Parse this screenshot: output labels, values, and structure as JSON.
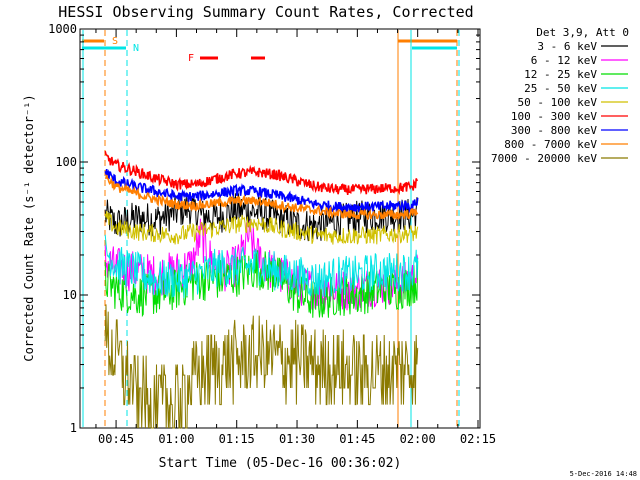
{
  "chart_data": {
    "type": "line",
    "title": "HESSI Observing Summary Count Rates, Corrected",
    "xlabel": "Start Time (05-Dec-16 00:36:02)",
    "ylabel": "Corrected Count Rate (s⁻¹ detector⁻¹)",
    "yscale": "log",
    "ylim": [
      1,
      1000
    ],
    "xlim_min": [
      36.03,
      135.5
    ],
    "y_ticks": [
      {
        "v": 1,
        "label": "1"
      },
      {
        "v": 10,
        "label": "10"
      },
      {
        "v": 100,
        "label": "100"
      },
      {
        "v": 1000,
        "label": "1000"
      }
    ],
    "x_ticks": [
      {
        "v": 45,
        "label": "00:45"
      },
      {
        "v": 60,
        "label": "01:00"
      },
      {
        "v": 75,
        "label": "01:15"
      },
      {
        "v": 90,
        "label": "01:30"
      },
      {
        "v": 105,
        "label": "01:45"
      },
      {
        "v": 120,
        "label": "02:00"
      },
      {
        "v": 135,
        "label": "02:15"
      }
    ],
    "legend_header": "Det 3,9, Att 0",
    "data_start": 42.3,
    "data_end": 120.0,
    "series": [
      {
        "name": "3 - 6 keV",
        "color": "#000000",
        "noise": 0.13,
        "pts": [
          [
            42.3,
            40
          ],
          [
            45,
            34
          ],
          [
            50,
            38
          ],
          [
            55,
            37
          ],
          [
            60,
            42
          ],
          [
            63,
            45
          ],
          [
            66,
            40
          ],
          [
            70,
            38
          ],
          [
            75,
            44
          ],
          [
            80,
            42
          ],
          [
            85,
            38
          ],
          [
            90,
            34
          ],
          [
            95,
            33
          ],
          [
            100,
            36
          ],
          [
            105,
            38
          ],
          [
            110,
            40
          ],
          [
            115,
            40
          ],
          [
            119,
            40
          ],
          [
            120,
            44
          ]
        ]
      },
      {
        "name": "6 - 12 keV",
        "color": "#ff00ff",
        "noise": 0.16,
        "pts": [
          [
            42.3,
            18
          ],
          [
            45,
            16
          ],
          [
            50,
            15
          ],
          [
            55,
            14
          ],
          [
            60,
            15
          ],
          [
            64,
            17
          ],
          [
            66,
            28
          ],
          [
            68,
            20
          ],
          [
            70,
            16
          ],
          [
            73,
            15
          ],
          [
            75,
            17
          ],
          [
            77,
            23
          ],
          [
            78,
            28
          ],
          [
            80,
            20
          ],
          [
            83,
            16
          ],
          [
            86,
            14
          ],
          [
            90,
            12
          ],
          [
            95,
            11
          ],
          [
            100,
            11
          ],
          [
            105,
            11
          ],
          [
            110,
            12
          ],
          [
            115,
            12
          ],
          [
            119,
            13
          ],
          [
            120,
            15
          ]
        ]
      },
      {
        "name": "12 - 25 keV",
        "color": "#00dd00",
        "noise": 0.16,
        "pts": [
          [
            42.3,
            13
          ],
          [
            45,
            11
          ],
          [
            50,
            10
          ],
          [
            55,
            10
          ],
          [
            60,
            11
          ],
          [
            65,
            13
          ],
          [
            70,
            13
          ],
          [
            75,
            14
          ],
          [
            80,
            16
          ],
          [
            85,
            14
          ],
          [
            90,
            10
          ],
          [
            95,
            9
          ],
          [
            100,
            10
          ],
          [
            105,
            10
          ],
          [
            110,
            11
          ],
          [
            115,
            11
          ],
          [
            119,
            12
          ],
          [
            120,
            13
          ]
        ]
      },
      {
        "name": "25 - 50 keV",
        "color": "#00e5e5",
        "noise": 0.15,
        "pts": [
          [
            42.3,
            22
          ],
          [
            45,
            17
          ],
          [
            50,
            15
          ],
          [
            55,
            13
          ],
          [
            60,
            13
          ],
          [
            65,
            14
          ],
          [
            70,
            16
          ],
          [
            75,
            16
          ],
          [
            80,
            17
          ],
          [
            85,
            15
          ],
          [
            90,
            14
          ],
          [
            95,
            13
          ],
          [
            100,
            14
          ],
          [
            105,
            14
          ],
          [
            110,
            15
          ],
          [
            115,
            15
          ],
          [
            119,
            15
          ],
          [
            120,
            17
          ]
        ]
      },
      {
        "name": "50 - 100 keV",
        "color": "#d0c000",
        "noise": 0.07,
        "pts": [
          [
            42.3,
            38
          ],
          [
            45,
            32
          ],
          [
            50,
            30
          ],
          [
            55,
            29
          ],
          [
            60,
            28
          ],
          [
            65,
            30
          ],
          [
            70,
            32
          ],
          [
            75,
            34
          ],
          [
            80,
            35
          ],
          [
            85,
            32
          ],
          [
            90,
            30
          ],
          [
            95,
            28
          ],
          [
            100,
            28
          ],
          [
            105,
            28
          ],
          [
            110,
            28
          ],
          [
            115,
            29
          ],
          [
            119,
            29
          ],
          [
            120,
            30
          ]
        ]
      },
      {
        "name": "100 - 300 keV",
        "color": "#ff0000",
        "noise": 0.04,
        "pts": [
          [
            42.3,
            110
          ],
          [
            45,
            95
          ],
          [
            50,
            85
          ],
          [
            55,
            75
          ],
          [
            60,
            68
          ],
          [
            65,
            68
          ],
          [
            70,
            75
          ],
          [
            75,
            82
          ],
          [
            80,
            84
          ],
          [
            85,
            80
          ],
          [
            90,
            72
          ],
          [
            95,
            65
          ],
          [
            100,
            62
          ],
          [
            105,
            62
          ],
          [
            110,
            63
          ],
          [
            115,
            64
          ],
          [
            119,
            65
          ],
          [
            120,
            75
          ]
        ]
      },
      {
        "name": "300 - 800 keV",
        "color": "#0000ff",
        "noise": 0.04,
        "pts": [
          [
            42.3,
            85
          ],
          [
            45,
            72
          ],
          [
            50,
            65
          ],
          [
            55,
            60
          ],
          [
            60,
            55
          ],
          [
            65,
            55
          ],
          [
            70,
            58
          ],
          [
            75,
            61
          ],
          [
            80,
            60
          ],
          [
            85,
            56
          ],
          [
            90,
            52
          ],
          [
            95,
            48
          ],
          [
            100,
            46
          ],
          [
            105,
            46
          ],
          [
            110,
            46
          ],
          [
            115,
            47
          ],
          [
            119,
            47
          ],
          [
            120,
            52
          ]
        ]
      },
      {
        "name": "800 - 7000 keV",
        "color": "#ff7f00",
        "noise": 0.035,
        "pts": [
          [
            42.3,
            78
          ],
          [
            45,
            65
          ],
          [
            50,
            58
          ],
          [
            55,
            52
          ],
          [
            60,
            48
          ],
          [
            65,
            47
          ],
          [
            70,
            49
          ],
          [
            75,
            51
          ],
          [
            80,
            51
          ],
          [
            85,
            48
          ],
          [
            90,
            45
          ],
          [
            95,
            43
          ],
          [
            100,
            41
          ],
          [
            105,
            40
          ],
          [
            110,
            40
          ],
          [
            115,
            40
          ],
          [
            119,
            41
          ],
          [
            120,
            44
          ]
        ]
      },
      {
        "name": "7000 - 20000 keV",
        "color": "#8b7a00",
        "noise": 0.3,
        "pts": [
          [
            42.3,
            4.5
          ],
          [
            45,
            3.5
          ],
          [
            50,
            1.8
          ],
          [
            55,
            1.5
          ],
          [
            60,
            1.6
          ],
          [
            65,
            2.5
          ],
          [
            70,
            3
          ],
          [
            75,
            3.2
          ],
          [
            80,
            3.5
          ],
          [
            85,
            3.4
          ],
          [
            90,
            3.2
          ],
          [
            95,
            3.0
          ],
          [
            100,
            2.8
          ],
          [
            105,
            2.6
          ],
          [
            110,
            2.7
          ],
          [
            115,
            2.8
          ],
          [
            119,
            2.9
          ],
          [
            120,
            3.0
          ]
        ]
      }
    ],
    "annotations": {
      "s_label": "S",
      "n_label": "N",
      "f_label": "F",
      "date_stamp": "5-Dec-2016 14:48"
    }
  }
}
